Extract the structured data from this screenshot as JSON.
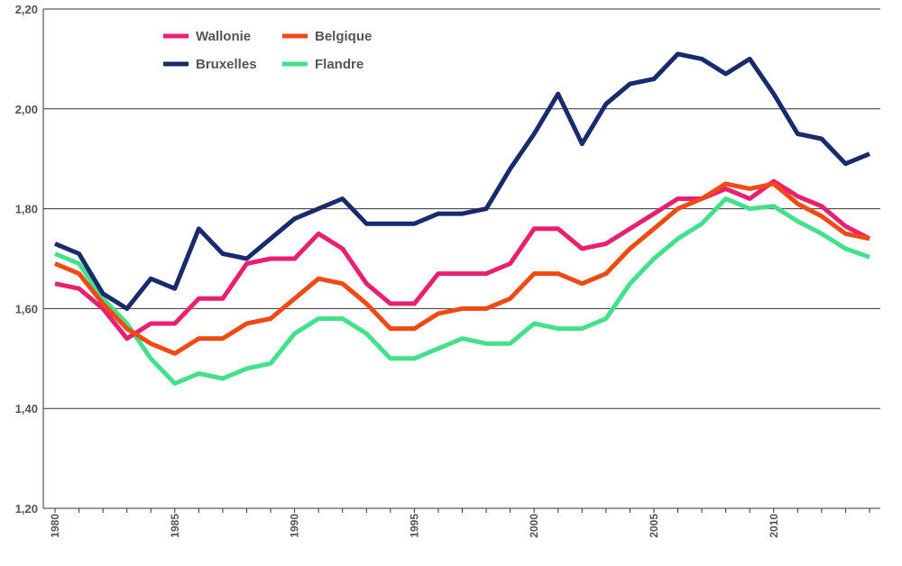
{
  "chart_data": {
    "type": "line",
    "x": [
      1980,
      1981,
      1982,
      1983,
      1984,
      1985,
      1986,
      1987,
      1988,
      1989,
      1990,
      1991,
      1992,
      1993,
      1994,
      1995,
      1996,
      1997,
      1998,
      1999,
      2000,
      2001,
      2002,
      2003,
      2004,
      2005,
      2006,
      2007,
      2008,
      2009,
      2010,
      2011,
      2012,
      2013,
      2014
    ],
    "x_tick_labels": [
      "1980",
      "1985",
      "1990",
      "1995",
      "2000",
      "2005",
      "2010"
    ],
    "y_tick_labels": [
      "1,20",
      "1,40",
      "1,60",
      "1,80",
      "2,00",
      "2,20"
    ],
    "ylim": [
      1.2,
      2.2
    ],
    "xlim": [
      1980,
      2014
    ],
    "grid": "horizontal",
    "legend_position": "top-left",
    "series": [
      {
        "name": "Wallonie",
        "color": "#e8206f",
        "values": [
          1.65,
          1.64,
          1.6,
          1.54,
          1.57,
          1.57,
          1.62,
          1.62,
          1.69,
          1.7,
          1.7,
          1.75,
          1.72,
          1.65,
          1.61,
          1.61,
          1.67,
          1.67,
          1.67,
          1.69,
          1.76,
          1.76,
          1.72,
          1.73,
          1.76,
          1.79,
          1.82,
          1.82,
          1.84,
          1.82,
          1.855,
          1.825,
          1.805,
          1.765,
          1.74
        ]
      },
      {
        "name": "Belgique",
        "color": "#f04a14",
        "values": [
          1.69,
          1.67,
          1.61,
          1.56,
          1.53,
          1.51,
          1.54,
          1.54,
          1.57,
          1.58,
          1.62,
          1.66,
          1.65,
          1.61,
          1.56,
          1.56,
          1.59,
          1.6,
          1.6,
          1.62,
          1.67,
          1.67,
          1.65,
          1.67,
          1.72,
          1.76,
          1.8,
          1.82,
          1.85,
          1.84,
          1.85,
          1.81,
          1.785,
          1.75,
          1.74
        ]
      },
      {
        "name": "Bruxelles",
        "color": "#1a2b6d",
        "values": [
          1.73,
          1.71,
          1.63,
          1.6,
          1.66,
          1.64,
          1.76,
          1.71,
          1.7,
          1.74,
          1.78,
          1.8,
          1.82,
          1.77,
          1.77,
          1.77,
          1.79,
          1.79,
          1.8,
          1.88,
          1.95,
          2.03,
          1.93,
          2.01,
          2.05,
          2.06,
          2.11,
          2.1,
          2.07,
          2.1,
          2.03,
          1.95,
          1.94,
          1.89,
          1.91
        ]
      },
      {
        "name": "Flandre",
        "color": "#44e08c",
        "values": [
          1.71,
          1.69,
          1.62,
          1.57,
          1.5,
          1.45,
          1.47,
          1.46,
          1.48,
          1.49,
          1.55,
          1.58,
          1.58,
          1.55,
          1.5,
          1.5,
          1.52,
          1.54,
          1.53,
          1.53,
          1.57,
          1.56,
          1.56,
          1.58,
          1.65,
          1.7,
          1.74,
          1.77,
          1.82,
          1.8,
          1.805,
          1.775,
          1.75,
          1.72,
          1.703
        ]
      }
    ],
    "legend_order": [
      "Wallonie",
      "Belgique",
      "Bruxelles",
      "Flandre"
    ],
    "title": "",
    "xlabel": "",
    "ylabel": ""
  }
}
